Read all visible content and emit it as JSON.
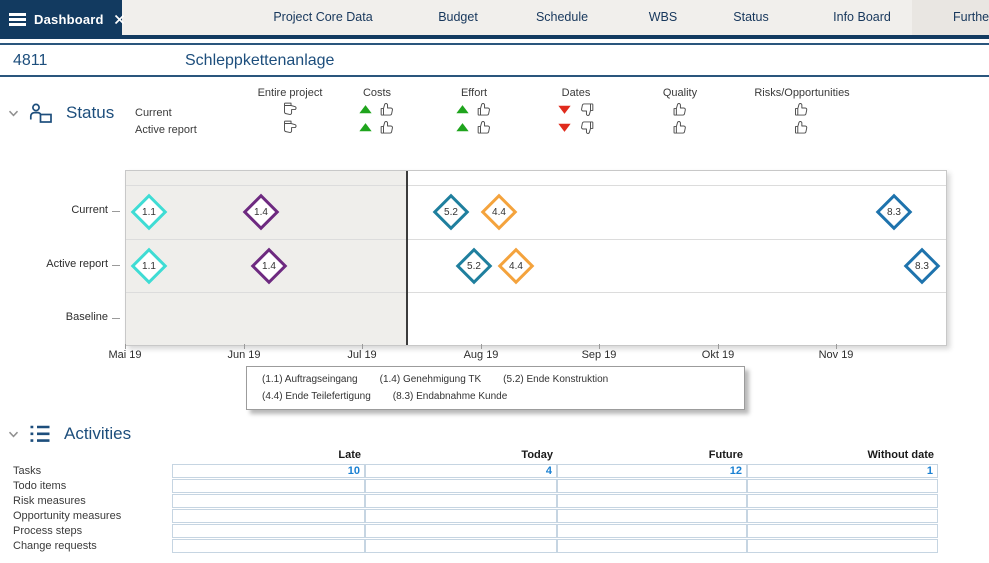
{
  "topbar": {
    "active_tab": "Dashboard",
    "tabs": [
      "Project Core Data",
      "Budget",
      "Schedule",
      "WBS",
      "Status",
      "Info Board",
      "Further..."
    ]
  },
  "project": {
    "id": "4811",
    "name": "Schleppkettenanlage"
  },
  "colors": {
    "navy": "#123a60",
    "accent_blue": "#1d4e7c",
    "positive_green": "#1fa41d",
    "negative_red": "#e02b1d",
    "value_blue": "#1a80d2"
  },
  "status_section": {
    "title": "Status",
    "row_labels": [
      "Current",
      "Active report"
    ],
    "columns": [
      {
        "label": "Entire project",
        "icons": {
          "current": [
            "thumb-neutral"
          ],
          "active_report": [
            "thumb-neutral"
          ]
        }
      },
      {
        "label": "Costs",
        "icons": {
          "current": [
            "trend-up",
            "thumb-up"
          ],
          "active_report": [
            "trend-up",
            "thumb-up"
          ]
        }
      },
      {
        "label": "Effort",
        "icons": {
          "current": [
            "trend-up",
            "thumb-up"
          ],
          "active_report": [
            "trend-up",
            "thumb-up"
          ]
        }
      },
      {
        "label": "Dates",
        "icons": {
          "current": [
            "trend-down",
            "thumb-down"
          ],
          "active_report": [
            "trend-down",
            "thumb-down"
          ]
        }
      },
      {
        "label": "Quality",
        "icons": {
          "current": [
            "thumb-up"
          ],
          "active_report": [
            "thumb-up"
          ]
        }
      },
      {
        "label": "Risks/Opportunities",
        "icons": {
          "current": [
            "thumb-up"
          ],
          "active_report": [
            "thumb-up"
          ]
        }
      }
    ]
  },
  "chart_data": {
    "type": "timeline-milestones",
    "rows": [
      "Current",
      "Active report",
      "Baseline"
    ],
    "x_axis_labels": [
      "Mai 19",
      "Jun 19",
      "Jul 19",
      "Aug 19",
      "Sep 19",
      "Okt 19",
      "Nov 19"
    ],
    "today_month_offset": 2.36,
    "milestones": [
      {
        "id": "1.1",
        "row": "Current",
        "month_offset": 0.19,
        "color": "#3fdcd4"
      },
      {
        "id": "1.4",
        "row": "Current",
        "month_offset": 1.14,
        "color": "#6e2a80"
      },
      {
        "id": "5.2",
        "row": "Current",
        "month_offset": 2.74,
        "color": "#1f7f9e"
      },
      {
        "id": "4.4",
        "row": "Current",
        "month_offset": 3.15,
        "color": "#f4a33d"
      },
      {
        "id": "8.3",
        "row": "Current",
        "month_offset": 6.48,
        "color": "#1e73ad"
      },
      {
        "id": "1.1",
        "row": "Active report",
        "month_offset": 0.19,
        "color": "#3fdcd4"
      },
      {
        "id": "1.4",
        "row": "Active report",
        "month_offset": 1.21,
        "color": "#6e2a80"
      },
      {
        "id": "5.2",
        "row": "Active report",
        "month_offset": 2.94,
        "color": "#1f7f9e"
      },
      {
        "id": "4.4",
        "row": "Active report",
        "month_offset": 3.29,
        "color": "#f4a33d"
      },
      {
        "id": "8.3",
        "row": "Active report",
        "month_offset": 6.72,
        "color": "#1e73ad"
      }
    ],
    "legend": [
      {
        "id": "1.1",
        "label": "Auftragseingang"
      },
      {
        "id": "1.4",
        "label": "Genehmigung TK"
      },
      {
        "id": "5.2",
        "label": "Ende Konstruktion"
      },
      {
        "id": "4.4",
        "label": "Ende Teilefertigung"
      },
      {
        "id": "8.3",
        "label": "Endabnahme Kunde"
      }
    ]
  },
  "activities": {
    "title": "Activities",
    "columns": [
      "Late",
      "Today",
      "Future",
      "Without date"
    ],
    "rows": [
      {
        "label": "Tasks",
        "values": [
          "10",
          "4",
          "12",
          "1"
        ]
      },
      {
        "label": "Todo items",
        "values": [
          "",
          "",
          "",
          ""
        ]
      },
      {
        "label": "Risk measures",
        "values": [
          "",
          "",
          "",
          ""
        ]
      },
      {
        "label": "Opportunity measures",
        "values": [
          "",
          "",
          "",
          ""
        ]
      },
      {
        "label": "Process steps",
        "values": [
          "",
          "",
          "",
          ""
        ]
      },
      {
        "label": "Change requests",
        "values": [
          "",
          "",
          "",
          ""
        ]
      }
    ]
  }
}
